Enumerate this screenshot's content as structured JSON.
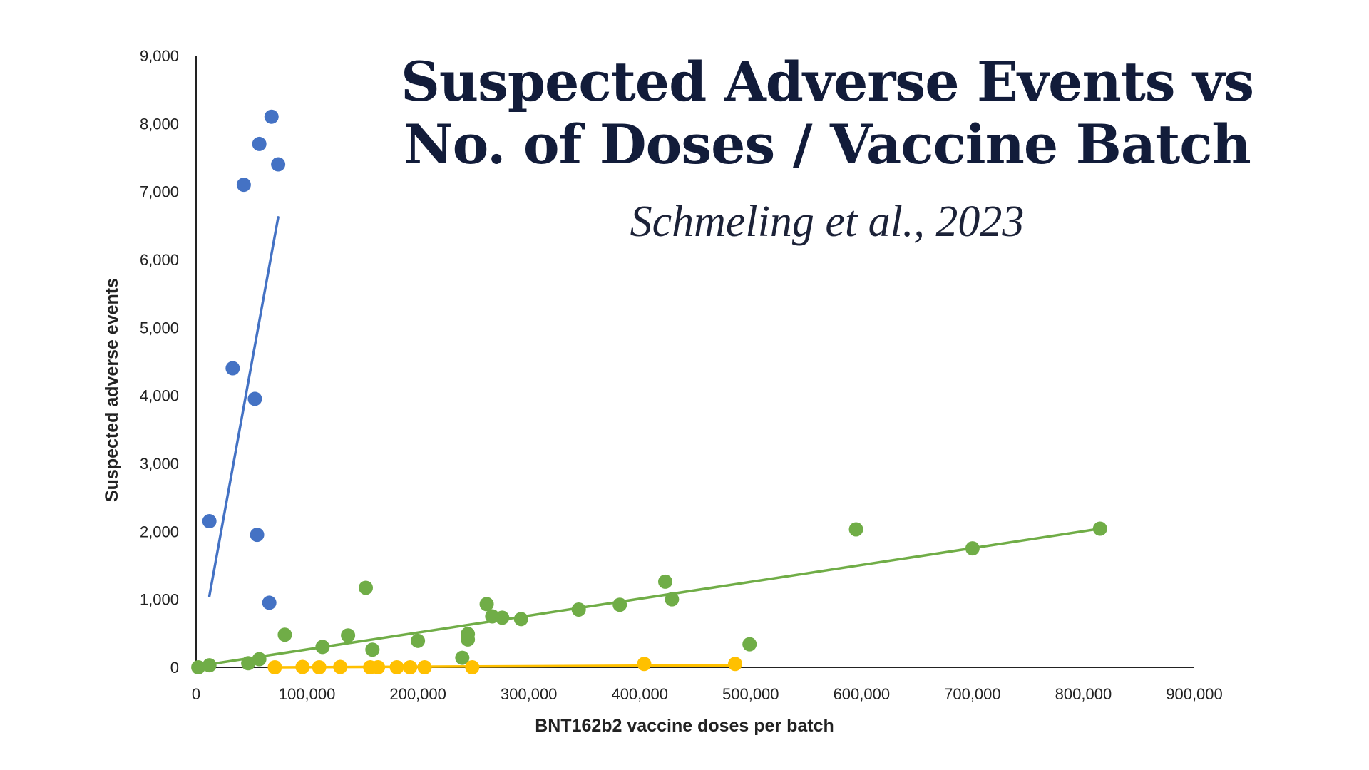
{
  "title": {
    "line1": "Suspected Adverse Events vs",
    "line2": "No. of Doses / Vaccine Batch"
  },
  "subtitle": "Schmeling et al., 2023",
  "chart_data": {
    "type": "scatter",
    "xlabel": "BNT162b2 vaccine doses per batch",
    "ylabel": "Suspected adverse events",
    "xlim": [
      0,
      900000
    ],
    "ylim": [
      0,
      9000
    ],
    "x_ticks": [
      0,
      100000,
      200000,
      300000,
      400000,
      500000,
      600000,
      700000,
      800000,
      900000
    ],
    "y_ticks": [
      0,
      1000,
      2000,
      3000,
      4000,
      5000,
      6000,
      7000,
      8000,
      9000
    ],
    "x_tick_labels": [
      "0",
      "100,000",
      "200,000",
      "300,000",
      "400,000",
      "500,000",
      "600,000",
      "700,000",
      "800,000",
      "900,000"
    ],
    "y_tick_labels": [
      "0",
      "1,000",
      "2,000",
      "3,000",
      "4,000",
      "5,000",
      "6,000",
      "7,000",
      "8,000",
      "9,000"
    ],
    "grid": false,
    "legend": "none",
    "series": [
      {
        "color": "#4472c4",
        "points": [
          [
            12000,
            2150
          ],
          [
            33000,
            4400
          ],
          [
            43000,
            7100
          ],
          [
            53000,
            3950
          ],
          [
            55000,
            1950
          ],
          [
            57000,
            7700
          ],
          [
            66000,
            950
          ],
          [
            68000,
            8100
          ],
          [
            74000,
            7400
          ]
        ],
        "trendline": [
          [
            12000,
            1050
          ],
          [
            74000,
            6620
          ]
        ]
      },
      {
        "color": "#70ad47",
        "points": [
          [
            2000,
            0
          ],
          [
            12000,
            30
          ],
          [
            47000,
            60
          ],
          [
            57000,
            120
          ],
          [
            80000,
            480
          ],
          [
            114000,
            300
          ],
          [
            137000,
            470
          ],
          [
            153000,
            1170
          ],
          [
            159000,
            260
          ],
          [
            200000,
            390
          ],
          [
            240000,
            140
          ],
          [
            245000,
            490
          ],
          [
            245000,
            410
          ],
          [
            262000,
            930
          ],
          [
            267000,
            750
          ],
          [
            276000,
            730
          ],
          [
            293000,
            710
          ],
          [
            345000,
            850
          ],
          [
            382000,
            920
          ],
          [
            423000,
            1260
          ],
          [
            429000,
            1000
          ],
          [
            499000,
            340
          ],
          [
            595000,
            2030
          ],
          [
            700000,
            1750
          ],
          [
            815000,
            2040
          ]
        ],
        "trendline": [
          [
            2000,
            20
          ],
          [
            815000,
            2040
          ]
        ]
      },
      {
        "color": "#ffc000",
        "points": [
          [
            71000,
            0
          ],
          [
            96000,
            5
          ],
          [
            111000,
            0
          ],
          [
            130000,
            5
          ],
          [
            157000,
            0
          ],
          [
            164000,
            0
          ],
          [
            181000,
            0
          ],
          [
            193000,
            0
          ],
          [
            206000,
            0
          ],
          [
            249000,
            0
          ],
          [
            404000,
            50
          ],
          [
            486000,
            50
          ]
        ],
        "trendline": [
          [
            71000,
            0
          ],
          [
            486000,
            30
          ]
        ]
      }
    ]
  }
}
